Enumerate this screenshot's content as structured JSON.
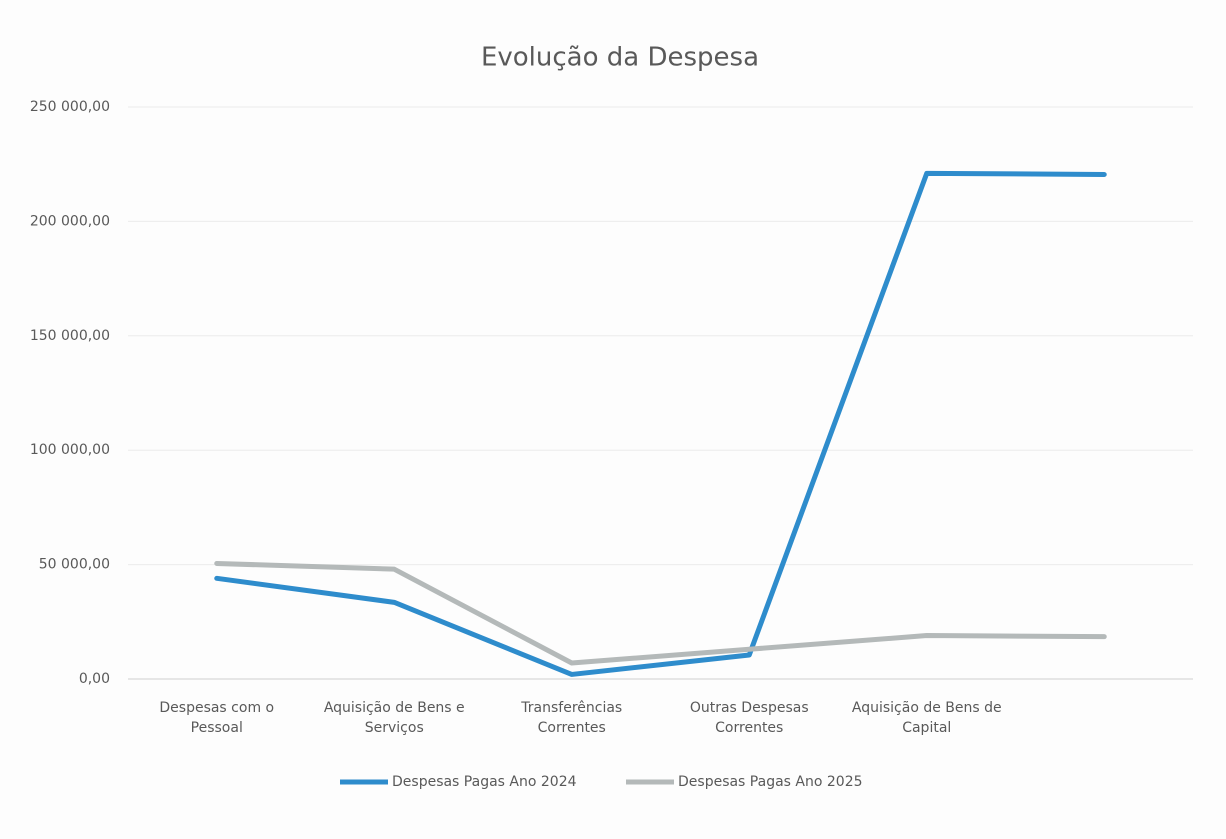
{
  "chart_data": {
    "type": "line",
    "title": "Evolução da Despesa",
    "categories": [
      "Despesas com o Pessoal",
      "Aquisição de Bens e Serviços",
      "Transferências Correntes",
      "Outras Despesas Correntes",
      "Aquisição de Bens de Capital",
      null
    ],
    "series": [
      {
        "name": "Despesas Pagas Ano 2024",
        "color": "#2e8ccc",
        "values": [
          44000,
          33500,
          2000,
          10500,
          221000,
          220500
        ]
      },
      {
        "name": "Despesas Pagas Ano 2025",
        "color": "#b4b9b9",
        "values": [
          50500,
          48000,
          7000,
          13000,
          19000,
          18500
        ]
      }
    ],
    "ylim": [
      0,
      250000
    ],
    "yticks": [
      {
        "value": 0,
        "label": "0,00"
      },
      {
        "value": 50000,
        "label": "50 000,00"
      },
      {
        "value": 100000,
        "label": "100 000,00"
      },
      {
        "value": 150000,
        "label": "150 000,00"
      },
      {
        "value": 200000,
        "label": "200 000,00"
      },
      {
        "value": 250000,
        "label": "250 000,00"
      }
    ],
    "grid": true,
    "legend": "bottom"
  }
}
